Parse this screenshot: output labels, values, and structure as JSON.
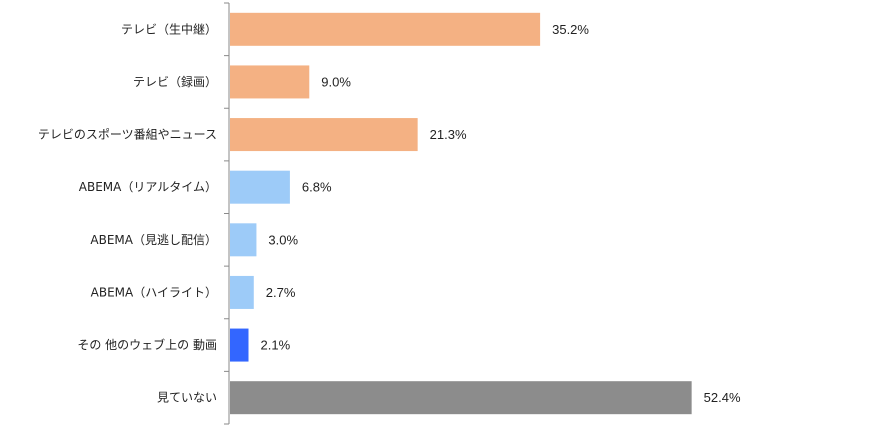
{
  "chart_data": {
    "type": "bar",
    "orientation": "horizontal",
    "categories": [
      "テレビ（生中継）",
      "テレビ（録画）",
      "テレビのスポーツ番組やニュース",
      "ABEMA（リアルタイム）",
      "ABEMA（見逃し配信）",
      "ABEMA（ハイライト）",
      "その 他のウェブ上の 動画",
      "見ていない"
    ],
    "values": [
      35.2,
      9.0,
      21.3,
      6.8,
      3.0,
      2.7,
      2.1,
      52.4
    ],
    "value_labels": [
      "35.2%",
      "9.0%",
      "21.3%",
      "6.8%",
      "3.0%",
      "2.7%",
      "2.1%",
      "52.4%"
    ],
    "bar_colors": [
      "#f4b183",
      "#f4b183",
      "#f4b183",
      "#9dcbf8",
      "#9dcbf8",
      "#9dcbf8",
      "#3366ff",
      "#8c8c8c"
    ],
    "xlim": [
      0,
      100
    ],
    "grid": false,
    "legend": "none",
    "title": "",
    "xlabel": "",
    "ylabel": ""
  }
}
